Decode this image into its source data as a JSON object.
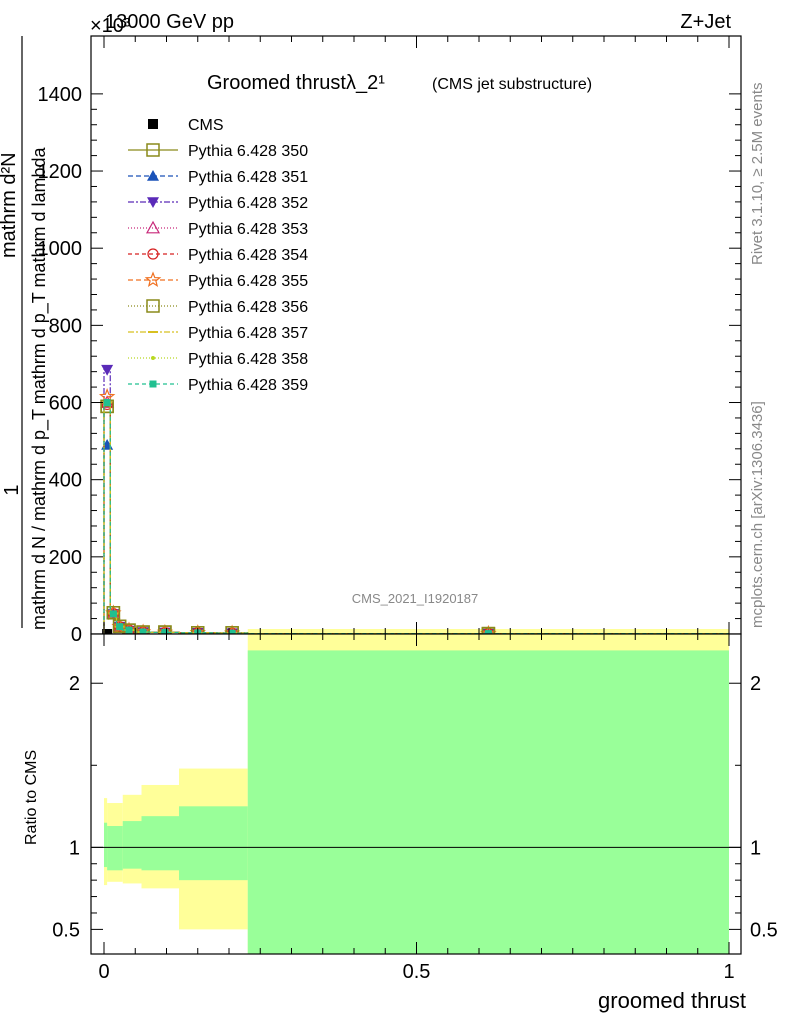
{
  "header": {
    "energy_label": "13000 GeV pp",
    "process_label": "Z+Jet",
    "exponent_label": "×10³"
  },
  "side_labels": {
    "rivet": "Rivet 3.1.10, ≥ 2.5M events",
    "mcplots": "mcplots.cern.ch [arXiv:1306.3436]"
  },
  "chart_data": [
    {
      "type": "line",
      "title": "Groomed thrustλ_2¹",
      "subtitle": "(CMS jet substructure)",
      "watermark": "CMS_2021_I1920187",
      "ylabel": "1 / mathrm d N / mathrm d p_T mathrm d² N / mathrm d p_T mathrm d lambda",
      "ylabel_parts": {
        "numerator": "1",
        "denominator": "mathrm d N / mathrm d p_T mathrm d p_T mathrm d lambda",
        "right": "mathrm d²N"
      },
      "ylim": [
        0,
        1550
      ],
      "y_ticks": [
        0,
        200,
        400,
        600,
        800,
        1000,
        1200,
        1400
      ],
      "y_tick_labels": [
        "0",
        "200",
        "400",
        "600",
        "800",
        "1000",
        "1200",
        "1400"
      ],
      "xlim": [
        -0.01,
        1.0
      ],
      "x_ticks": [
        0,
        0.5,
        1
      ],
      "legend_position": "top-left",
      "bin_edges": [
        0,
        0.01,
        0.02,
        0.03,
        0.05,
        0.075,
        0.12,
        0.18,
        0.23,
        1.0
      ],
      "series": [
        {
          "name": "CMS",
          "color": "#000000",
          "marker": "square-filled",
          "dash": "",
          "values": [
            0,
            0,
            0,
            0,
            0,
            0,
            0,
            0,
            0
          ]
        },
        {
          "name": "Pythia 6.428 350",
          "color": "#8a8a1a",
          "marker": "square-open",
          "dash": "",
          "values": [
            590,
            55,
            20,
            10,
            5,
            5,
            3,
            3,
            1
          ]
        },
        {
          "name": "Pythia 6.428 351",
          "color": "#1a52b8",
          "marker": "triangle-up",
          "dash": "5,3",
          "values": [
            490,
            50,
            18,
            9,
            5,
            4,
            3,
            2,
            1
          ]
        },
        {
          "name": "Pythia 6.428 352",
          "color": "#5a2ab8",
          "marker": "triangle-down",
          "dash": "6,2,2,2",
          "values": [
            685,
            52,
            19,
            9,
            5,
            4,
            3,
            2,
            1
          ]
        },
        {
          "name": "Pythia 6.428 353",
          "color": "#c8287a",
          "marker": "triangle-open",
          "dash": "1,2",
          "values": [
            600,
            54,
            19,
            10,
            5,
            4,
            3,
            2,
            1
          ]
        },
        {
          "name": "Pythia 6.428 354",
          "color": "#d62020",
          "marker": "circle-open",
          "dash": "4,3",
          "values": [
            595,
            53,
            19,
            10,
            5,
            4,
            3,
            2,
            1
          ]
        },
        {
          "name": "Pythia 6.428 355",
          "color": "#f07020",
          "marker": "star-open",
          "dash": "5,3",
          "values": [
            615,
            54,
            19,
            10,
            5,
            4,
            3,
            2,
            1
          ]
        },
        {
          "name": "Pythia 6.428 356",
          "color": "#8a8a1a",
          "marker": "square-open",
          "dash": "1,2",
          "values": [
            590,
            55,
            20,
            10,
            5,
            5,
            3,
            3,
            1
          ]
        },
        {
          "name": "Pythia 6.428 357",
          "color": "#d8c020",
          "marker": "dash",
          "dash": "6,2,2,2",
          "values": [
            600,
            53,
            19,
            10,
            5,
            4,
            3,
            2,
            1
          ]
        },
        {
          "name": "Pythia 6.428 358",
          "color": "#b8d820",
          "marker": "dot",
          "dash": "1,2",
          "values": [
            600,
            53,
            19,
            10,
            5,
            4,
            3,
            2,
            1
          ]
        },
        {
          "name": "Pythia 6.428 359",
          "color": "#20c090",
          "marker": "square-filled-small",
          "dash": "4,3",
          "values": [
            600,
            52,
            19,
            10,
            5,
            4,
            3,
            2,
            1
          ]
        }
      ],
      "extra_points": [
        {
          "x": 0.615,
          "y": 0
        }
      ]
    },
    {
      "type": "area",
      "ylabel": "Ratio to CMS",
      "xlabel": "groomed thrust",
      "ylim": [
        0.35,
        2.3
      ],
      "y_ticks": [
        0.5,
        1,
        2
      ],
      "y_tick_labels": [
        "0.5",
        "1",
        "2"
      ],
      "x_ticks": [
        0,
        0.5,
        1
      ],
      "x_tick_labels": [
        "0",
        "0.5",
        "1"
      ],
      "reference_line": 1,
      "bands": {
        "bin_edges": [
          0,
          0.005,
          0.03,
          0.06,
          0.12,
          0.23,
          1.0
        ],
        "inner": {
          "color": "#99ff99",
          "lo": [
            0.88,
            0.86,
            0.87,
            0.86,
            0.8,
            0.35
          ],
          "hi": [
            1.15,
            1.13,
            1.16,
            1.19,
            1.25,
            2.2
          ]
        },
        "outer": {
          "color": "#ffff99",
          "lo": [
            0.77,
            0.79,
            0.78,
            0.75,
            0.5,
            0.35
          ],
          "hi": [
            1.3,
            1.27,
            1.32,
            1.38,
            1.48,
            2.3
          ]
        }
      }
    }
  ]
}
